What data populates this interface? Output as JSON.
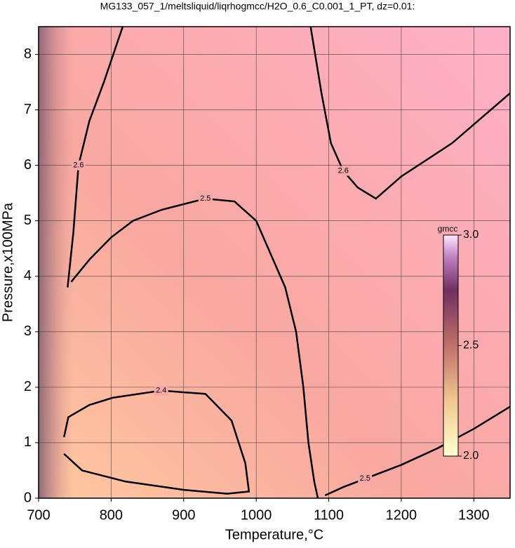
{
  "chart_data": {
    "type": "contour",
    "title": "MG133_057_1/meltsliquid/liqrhogmcc/H2O_0.6_C0.001_1_PT, dz=0.01:",
    "xlabel": "Temperature,°C",
    "ylabel": "Pressure,x100MPa",
    "xlim": [
      700,
      1350
    ],
    "ylim": [
      0,
      8.5
    ],
    "xticks": [
      700,
      800,
      900,
      1000,
      1100,
      1200,
      1300
    ],
    "yticks": [
      0,
      1,
      2,
      3,
      4,
      5,
      6,
      7,
      8
    ],
    "grid": true,
    "contours": [
      {
        "level": 2.5,
        "x": [
          745,
          770,
          800,
          830,
          870,
          930,
          970,
          1000,
          1020,
          1040,
          1055,
          1065,
          1072,
          1080,
          1085
        ],
        "y": [
          3.9,
          4.3,
          4.7,
          5.0,
          5.2,
          5.4,
          5.35,
          5.0,
          4.4,
          3.8,
          3.0,
          2.0,
          1.0,
          0.3,
          0
        ]
      },
      {
        "level": 2.5,
        "x": [
          1095,
          1120,
          1150,
          1200,
          1250,
          1300,
          1350
        ],
        "y": [
          0.05,
          0.2,
          0.35,
          0.6,
          0.9,
          1.25,
          1.65
        ]
      },
      {
        "level": 2.6,
        "x": [
          1075,
          1090,
          1103,
          1120,
          1140,
          1165,
          1200,
          1270,
          1350
        ],
        "y": [
          8.5,
          7.3,
          6.4,
          5.9,
          5.6,
          5.4,
          5.8,
          6.4,
          7.3
        ]
      },
      {
        "level": 2.6,
        "x": [
          740,
          748,
          755,
          770,
          790,
          816
        ],
        "y": [
          3.8,
          4.8,
          6.0,
          6.8,
          7.5,
          8.5
        ]
      },
      {
        "level": 2.4,
        "x": [
          735,
          741,
          770,
          802,
          869,
          930,
          966,
          985,
          990,
          960,
          900,
          820,
          760,
          735
        ],
        "y": [
          1.1,
          1.46,
          1.68,
          1.81,
          1.94,
          1.88,
          1.4,
          0.63,
          0.12,
          0.08,
          0.15,
          0.3,
          0.5,
          0.8
        ]
      }
    ],
    "colorbar": {
      "label": "gmcc",
      "lim": [
        2.0,
        3.0
      ],
      "ticks": [
        {
          "value": 2.0,
          "label": "2.0"
        },
        2.5,
        {
          "value": 3.0,
          "label": "3.0"
        }
      ]
    }
  }
}
